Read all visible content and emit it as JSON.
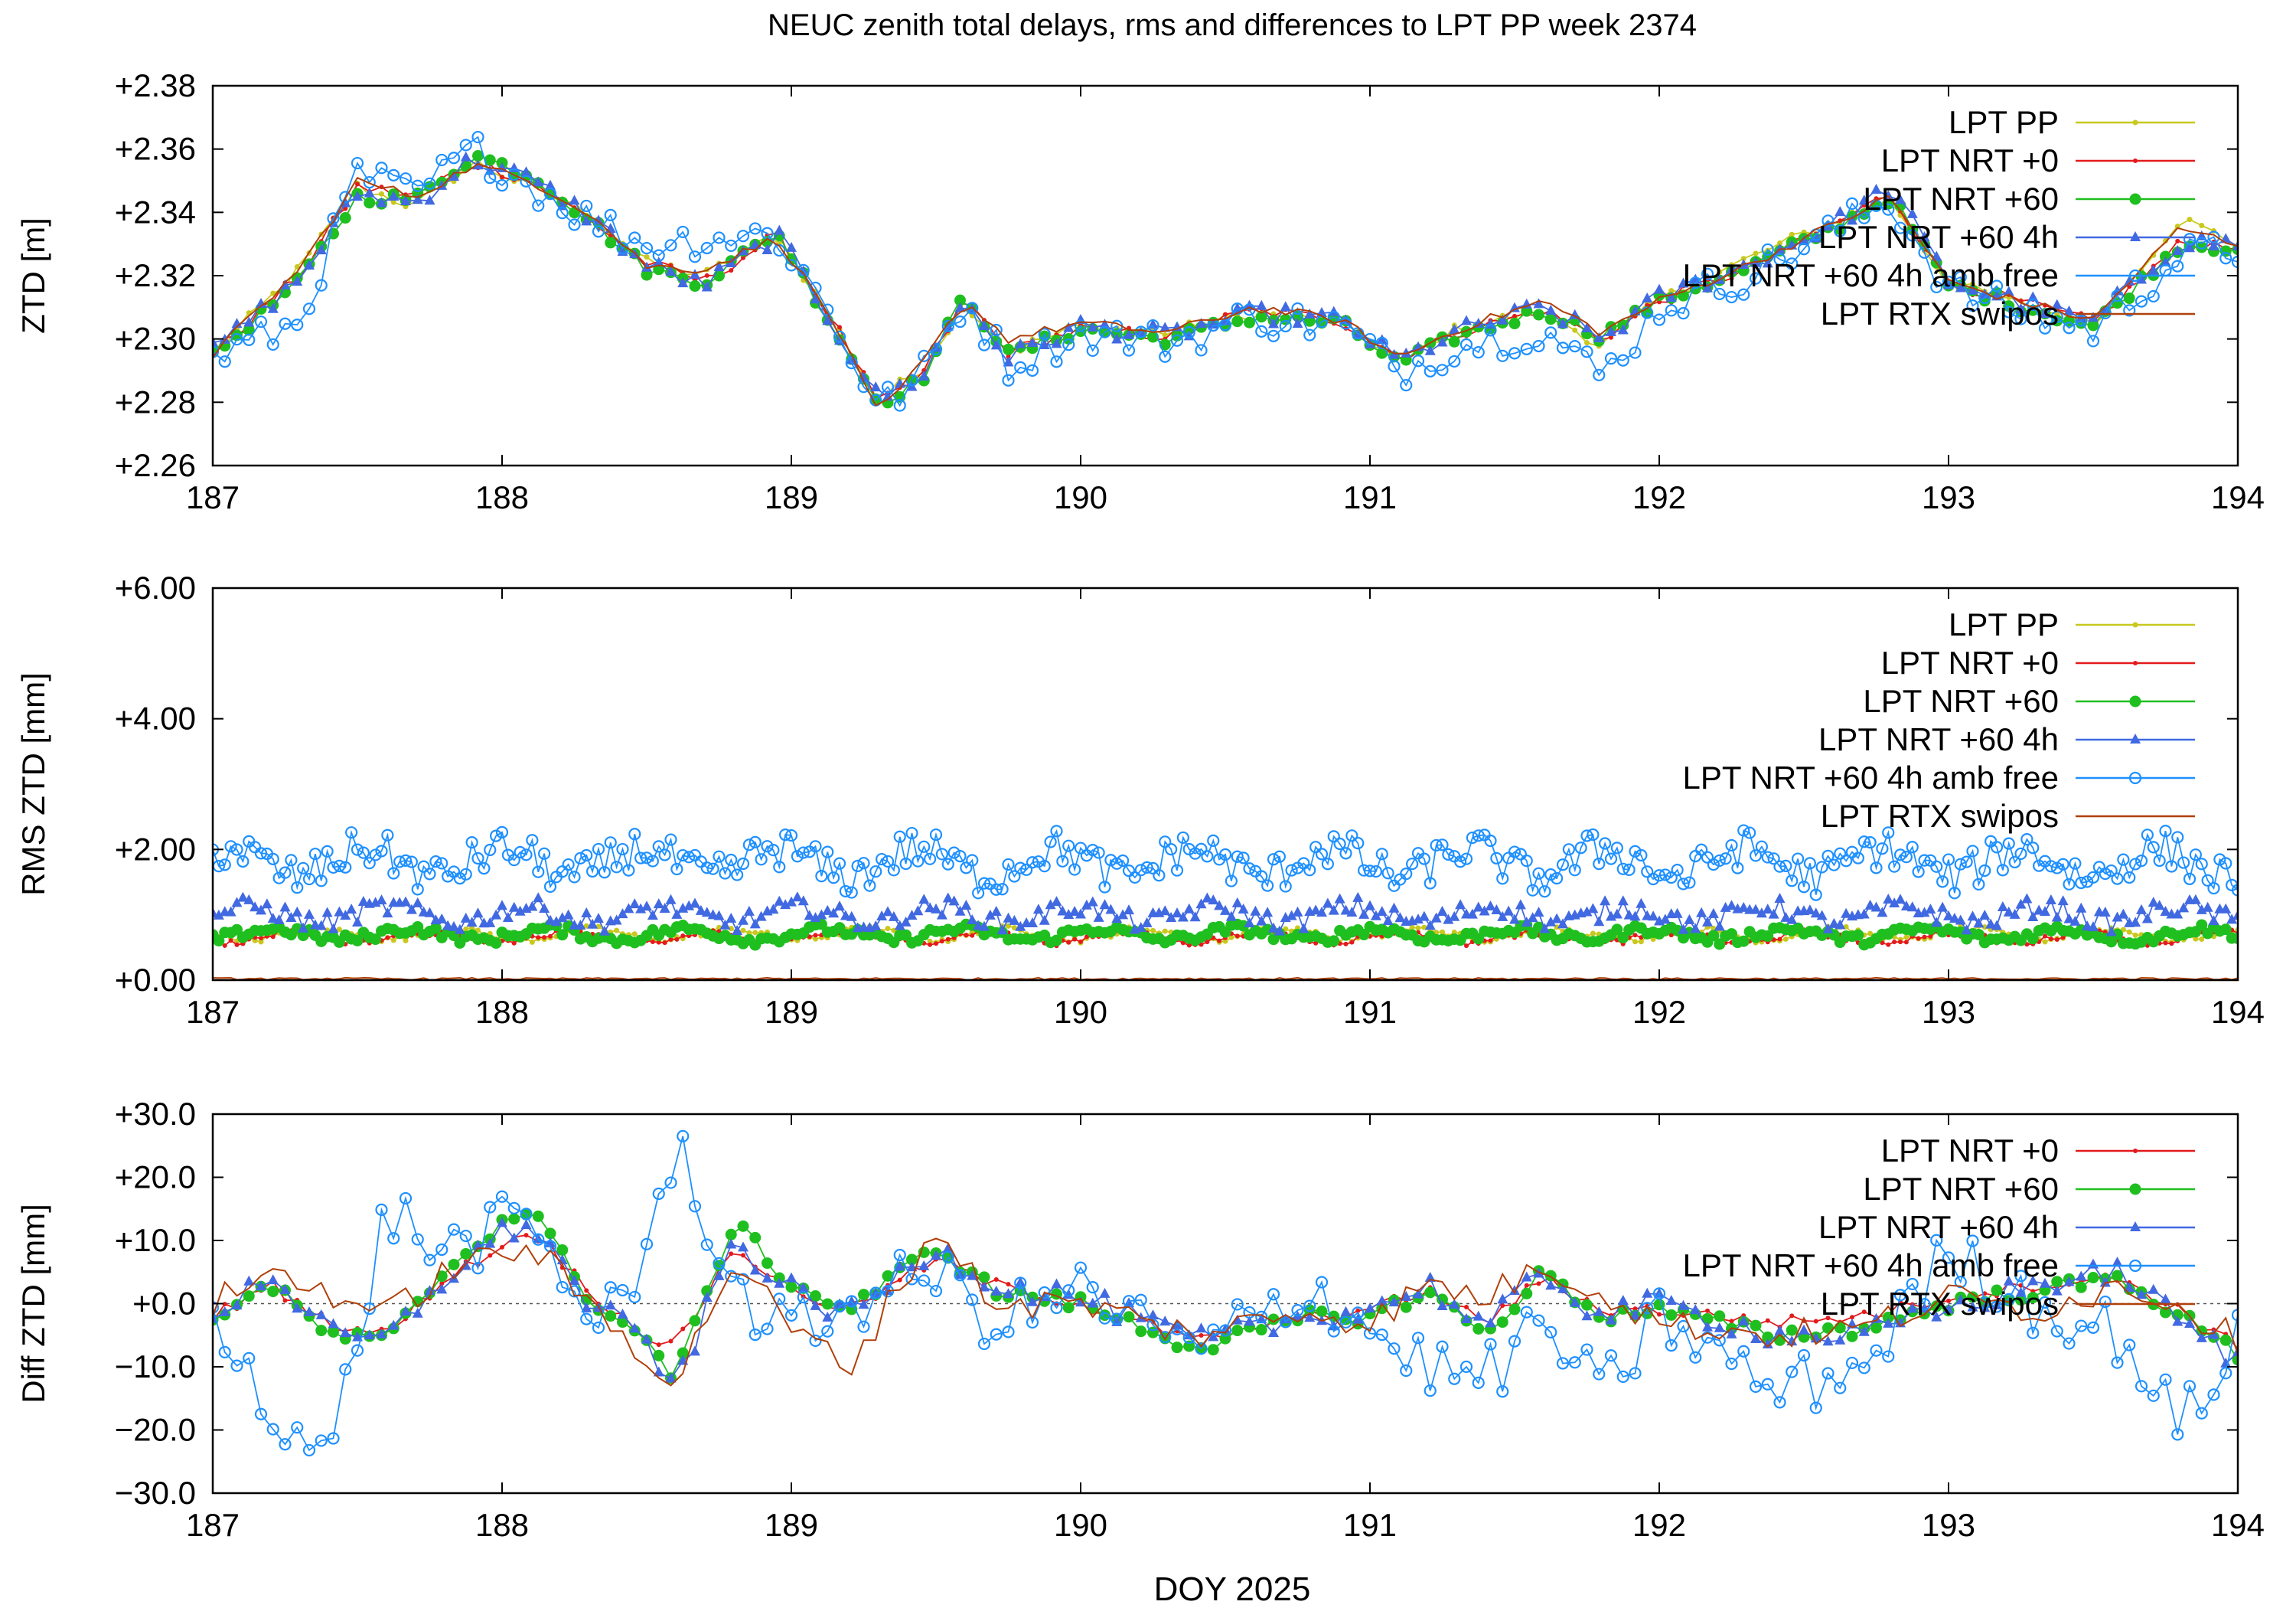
{
  "figure": {
    "title": "NEUC zenith total delays, rms and differences to LPT PP week 2374",
    "xlabel": "DOY 2025"
  },
  "colors": {
    "LPT PP": "#c8c81e",
    "LPT NRT +0": "#e41a1c",
    "LPT NRT +60": "#1fbf1f",
    "LPT NRT +60 4h": "#4169e1",
    "LPT NRT +60 4h amb free": "#1e90ff",
    "LPT RTX swipos": "#b0400a",
    "frame": "#000000",
    "zero_line": "#555555"
  },
  "chart_data": [
    {
      "type": "line",
      "ylabel": "ZTD [m]",
      "x_ticks": [
        "187",
        "188",
        "189",
        "190",
        "191",
        "192",
        "193",
        "194"
      ],
      "y_ticks": [
        "+2.26",
        "+2.28",
        "+2.30",
        "+2.32",
        "+2.34",
        "+2.36",
        "+2.38"
      ],
      "xlim": [
        187,
        194
      ],
      "ylim": [
        2.26,
        2.38
      ],
      "grid": false,
      "legend": "top-right",
      "x_knots": [
        187.0,
        187.3,
        187.5,
        187.7,
        187.9,
        188.1,
        188.3,
        188.5,
        188.7,
        188.95,
        189.15,
        189.3,
        189.45,
        189.6,
        189.75,
        190.0,
        190.3,
        190.6,
        190.9,
        191.1,
        191.3,
        191.6,
        191.8,
        192.0,
        192.3,
        192.6,
        192.8,
        193.0,
        193.2,
        193.5,
        193.8,
        194.0
      ],
      "series": [
        {
          "name": "LPT PP",
          "marker": "dot",
          "y_knots": [
            2.295,
            2.322,
            2.348,
            2.342,
            2.356,
            2.348,
            2.34,
            2.324,
            2.32,
            2.333,
            2.305,
            2.281,
            2.29,
            2.312,
            2.296,
            2.304,
            2.302,
            2.308,
            2.305,
            2.293,
            2.303,
            2.309,
            2.298,
            2.312,
            2.325,
            2.337,
            2.344,
            2.318,
            2.312,
            2.305,
            2.338,
            2.33
          ]
        },
        {
          "name": "LPT NRT +0",
          "marker": "small-dot",
          "y_knots": [
            2.295,
            2.32,
            2.348,
            2.345,
            2.356,
            2.35,
            2.338,
            2.324,
            2.318,
            2.333,
            2.305,
            2.279,
            2.288,
            2.313,
            2.296,
            2.303,
            2.301,
            2.309,
            2.306,
            2.294,
            2.302,
            2.309,
            2.3,
            2.312,
            2.322,
            2.336,
            2.346,
            2.318,
            2.313,
            2.305,
            2.33,
            2.33
          ]
        },
        {
          "name": "LPT NRT +60",
          "marker": "filled-circle",
          "y_knots": [
            2.295,
            2.318,
            2.345,
            2.344,
            2.358,
            2.352,
            2.338,
            2.322,
            2.318,
            2.334,
            2.303,
            2.28,
            2.287,
            2.314,
            2.295,
            2.303,
            2.3,
            2.307,
            2.305,
            2.292,
            2.301,
            2.309,
            2.301,
            2.312,
            2.322,
            2.335,
            2.345,
            2.317,
            2.312,
            2.304,
            2.33,
            2.329
          ]
        },
        {
          "name": "LPT NRT +60 4h",
          "marker": "triangle",
          "y_knots": [
            2.296,
            2.319,
            2.346,
            2.343,
            2.357,
            2.35,
            2.339,
            2.323,
            2.317,
            2.333,
            2.304,
            2.281,
            2.288,
            2.313,
            2.294,
            2.304,
            2.301,
            2.308,
            2.306,
            2.293,
            2.302,
            2.31,
            2.3,
            2.313,
            2.323,
            2.336,
            2.348,
            2.318,
            2.313,
            2.305,
            2.331,
            2.33
          ]
        },
        {
          "name": "LPT NRT +60 4h amb free",
          "marker": "open-circle",
          "y_knots": [
            2.294,
            2.305,
            2.352,
            2.345,
            2.36,
            2.349,
            2.338,
            2.33,
            2.332,
            2.333,
            2.306,
            2.278,
            2.288,
            2.313,
            2.292,
            2.302,
            2.299,
            2.307,
            2.304,
            2.29,
            2.298,
            2.303,
            2.288,
            2.31,
            2.32,
            2.334,
            2.344,
            2.316,
            2.31,
            2.303,
            2.326,
            2.328
          ]
        },
        {
          "name": "LPT RTX swipos",
          "marker": "none",
          "y_knots": [
            2.295,
            2.322,
            2.35,
            2.345,
            2.355,
            2.35,
            2.34,
            2.323,
            2.322,
            2.332,
            2.305,
            2.276,
            2.292,
            2.312,
            2.3,
            2.305,
            2.302,
            2.31,
            2.306,
            2.294,
            2.303,
            2.312,
            2.302,
            2.312,
            2.323,
            2.336,
            2.345,
            2.318,
            2.313,
            2.306,
            2.335,
            2.33
          ]
        }
      ]
    },
    {
      "type": "line",
      "ylabel": "RMS ZTD [mm]",
      "x_ticks": [
        "187",
        "188",
        "189",
        "190",
        "191",
        "192",
        "193",
        "194"
      ],
      "y_ticks": [
        "+0.00",
        "+2.00",
        "+4.00",
        "+6.00"
      ],
      "xlim": [
        187,
        194
      ],
      "ylim": [
        0,
        6
      ],
      "grid": false,
      "legend": "top-right",
      "series": [
        {
          "name": "LPT PP",
          "marker": "dot",
          "level": 0.7
        },
        {
          "name": "LPT NRT +0",
          "marker": "small-dot",
          "level": 0.65
        },
        {
          "name": "LPT NRT +60",
          "marker": "filled-circle",
          "level": 0.7
        },
        {
          "name": "LPT NRT +60 4h",
          "marker": "triangle",
          "level": 1.0
        },
        {
          "name": "LPT NRT +60 4h amb free",
          "marker": "open-circle",
          "level": 1.8
        },
        {
          "name": "LPT RTX swipos",
          "marker": "none",
          "level": 0.02
        }
      ]
    },
    {
      "type": "line",
      "ylabel": "Diff ZTD [mm]",
      "x_ticks": [
        "187",
        "188",
        "189",
        "190",
        "191",
        "192",
        "193",
        "194"
      ],
      "y_ticks": [
        "−30.0",
        "−20.0",
        "−10.0",
        "+0.0",
        "+10.0",
        "+20.0",
        "+30.0"
      ],
      "xlim": [
        187,
        194
      ],
      "ylim": [
        -30,
        30
      ],
      "grid": false,
      "zero_line": true,
      "legend": "top-right",
      "x_knots": [
        187.0,
        187.2,
        187.4,
        187.6,
        187.8,
        188.0,
        188.1,
        188.3,
        188.5,
        188.6,
        188.8,
        189.0,
        189.2,
        189.5,
        189.7,
        190.0,
        190.4,
        190.8,
        191.0,
        191.2,
        191.4,
        191.6,
        191.8,
        192.0,
        192.4,
        192.7,
        193.0,
        193.3,
        193.6,
        193.8,
        194.0
      ],
      "series": [
        {
          "name": "LPT NRT +0",
          "marker": "small-dot",
          "y_knots": [
            -2,
            3,
            -3,
            -5,
            4,
            9,
            12,
            2,
            -5,
            -7,
            9,
            2,
            -1,
            7,
            3,
            0,
            -6,
            -2,
            -1,
            2,
            -3,
            4,
            -1,
            -1,
            -3,
            -2,
            1,
            3,
            4,
            -1,
            -7
          ]
        },
        {
          "name": "LPT NRT +60",
          "marker": "filled-circle",
          "y_knots": [
            -2,
            3,
            -5,
            -6,
            5,
            13,
            15,
            1,
            -6,
            -12,
            13,
            3,
            -1,
            9,
            2,
            0,
            -7,
            -2,
            -2,
            2,
            -5,
            5,
            -2,
            -1,
            -5,
            -4,
            0,
            2,
            4,
            -2,
            -8
          ]
        },
        {
          "name": "LPT NRT +60 4h",
          "marker": "triangle",
          "y_knots": [
            -2,
            5,
            -5,
            -6,
            4,
            11,
            13,
            0,
            -6,
            -14,
            10,
            2,
            -2,
            9,
            3,
            1,
            -6,
            -2,
            -1,
            3,
            -4,
            5,
            -2,
            0,
            -5,
            -5,
            -1,
            3,
            5,
            -3,
            -9
          ]
        },
        {
          "name": "LPT NRT +60 4h amb free",
          "marker": "open-circle",
          "y_knots": [
            -3,
            -15,
            -26,
            15,
            8,
            12,
            12,
            -2,
            5,
            27,
            2,
            -5,
            0,
            5,
            -3,
            2,
            -8,
            3,
            -4,
            -10,
            -12,
            -3,
            -15,
            -2,
            -14,
            -10,
            8,
            0,
            -5,
            -20,
            -5
          ]
        },
        {
          "name": "LPT RTX swipos",
          "marker": "none",
          "y_knots": [
            0,
            5,
            2,
            -2,
            5,
            8,
            9,
            0,
            -8,
            -13,
            7,
            -4,
            -10,
            12,
            0,
            0,
            -5,
            -1,
            -3,
            3,
            1,
            6,
            2,
            -3,
            -5,
            -4,
            1,
            -1,
            3,
            0,
            -6
          ]
        }
      ]
    }
  ]
}
